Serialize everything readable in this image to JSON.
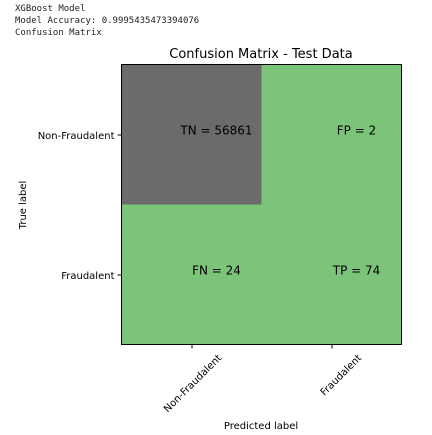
{
  "console": {
    "lines": [
      "XGBoost Model",
      "Model Accuracy: 0.9995435473394076",
      "Confusion Matrix"
    ]
  },
  "colors": {
    "dark_cell": "#6b6b6b",
    "light_cell": "#7cc47a",
    "axis": "#000000",
    "text": "#000000"
  },
  "chart_data": {
    "type": "heatmap",
    "title": "Confusion Matrix - Test Data",
    "xlabel": "Predicted label",
    "ylabel": "True label",
    "x_categories": [
      "Non-Fraudalent",
      "Fraudalent"
    ],
    "y_categories": [
      "Non-Fraudalent",
      "Fraudalent"
    ],
    "values": [
      [
        56861,
        2
      ],
      [
        24,
        74
      ]
    ],
    "cell_labels": [
      [
        "TN = 56861",
        "FP = 2"
      ],
      [
        "FN = 24",
        "TP = 74"
      ]
    ],
    "x_tick_rotation_deg": 45
  }
}
